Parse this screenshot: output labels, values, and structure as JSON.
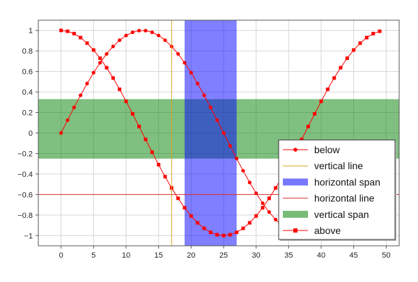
{
  "chart_data": {
    "type": "line",
    "xlim": [
      -3.5,
      52
    ],
    "ylim": [
      -1.1,
      1.1
    ],
    "x_ticks": [
      0,
      5,
      10,
      15,
      20,
      25,
      30,
      35,
      40,
      45,
      50
    ],
    "y_ticks": [
      -1,
      -0.8,
      -0.6,
      -0.4,
      -0.2,
      0,
      0.2,
      0.4,
      0.6,
      0.8,
      1
    ],
    "grid": true,
    "legend_position": "bottom-right",
    "vertical_line": {
      "name": "vertical line",
      "x": 17,
      "color": "#DAA520"
    },
    "horizontal_line": {
      "name": "horizontal line",
      "y": -0.6,
      "color": "#E03030"
    },
    "horizontal_span": {
      "name": "horizontal span",
      "x_from": 19,
      "x_to": 27,
      "color": "#0000FF"
    },
    "vertical_span": {
      "name": "vertical span",
      "y_from": -0.25,
      "y_to": 0.33,
      "color": "#008000"
    },
    "series": [
      {
        "name": "below",
        "marker": "circle",
        "color": "#FF0000",
        "x": [
          0,
          1,
          2,
          3,
          4,
          5,
          6,
          7,
          8,
          9,
          10,
          11,
          12,
          13,
          14,
          15,
          16,
          17,
          18,
          19,
          20,
          21,
          22,
          23,
          24,
          25,
          26,
          27,
          28,
          29,
          30,
          31,
          32,
          33,
          34,
          35,
          36,
          37,
          38,
          39,
          40,
          41,
          42,
          43,
          44,
          45,
          46,
          47,
          48,
          49
        ],
        "y": [
          0,
          0.125,
          0.249,
          0.368,
          0.482,
          0.588,
          0.685,
          0.771,
          0.844,
          0.905,
          0.951,
          0.982,
          0.998,
          0.998,
          0.982,
          0.951,
          0.905,
          0.844,
          0.771,
          0.685,
          0.588,
          0.482,
          0.368,
          0.249,
          0.125,
          0,
          -0.125,
          -0.249,
          -0.368,
          -0.482,
          -0.588,
          -0.685,
          -0.771,
          -0.844,
          -0.905,
          -0.951,
          -0.982,
          -0.998,
          -0.998,
          -0.982,
          -0.951,
          -0.905,
          -0.844,
          -0.771,
          -0.685,
          -0.588,
          -0.482,
          -0.368,
          -0.249,
          -0.125
        ]
      },
      {
        "name": "above",
        "marker": "square",
        "color": "#FF0000",
        "x": [
          0,
          1,
          2,
          3,
          4,
          5,
          6,
          7,
          8,
          9,
          10,
          11,
          12,
          13,
          14,
          15,
          16,
          17,
          18,
          19,
          20,
          21,
          22,
          23,
          24,
          25,
          26,
          27,
          28,
          29,
          30,
          31,
          32,
          33,
          34,
          35,
          36,
          37,
          38,
          39,
          40,
          41,
          42,
          43,
          44,
          45,
          46,
          47,
          48,
          49
        ],
        "y": [
          1,
          0.992,
          0.969,
          0.93,
          0.876,
          0.809,
          0.729,
          0.637,
          0.536,
          0.426,
          0.309,
          0.187,
          0.063,
          -0.063,
          -0.187,
          -0.309,
          -0.426,
          -0.536,
          -0.637,
          -0.729,
          -0.809,
          -0.876,
          -0.93,
          -0.969,
          -0.992,
          -1,
          -0.992,
          -0.969,
          -0.93,
          -0.876,
          -0.809,
          -0.729,
          -0.637,
          -0.536,
          -0.426,
          -0.309,
          -0.187,
          -0.063,
          0.063,
          0.187,
          0.309,
          0.426,
          0.536,
          0.637,
          0.729,
          0.809,
          0.876,
          0.93,
          0.969,
          0.992
        ]
      }
    ],
    "legend": [
      {
        "label": "below",
        "kind": "line-circle",
        "color": "#FF0000"
      },
      {
        "label": "vertical line",
        "kind": "line",
        "color": "#DAA520"
      },
      {
        "label": "horizontal span",
        "kind": "block",
        "color": "#7777FF"
      },
      {
        "label": "horizontal line",
        "kind": "line",
        "color": "#E03030"
      },
      {
        "label": "vertical span",
        "kind": "block",
        "color": "#77BB77"
      },
      {
        "label": "above",
        "kind": "line-square",
        "color": "#FF0000"
      }
    ]
  }
}
